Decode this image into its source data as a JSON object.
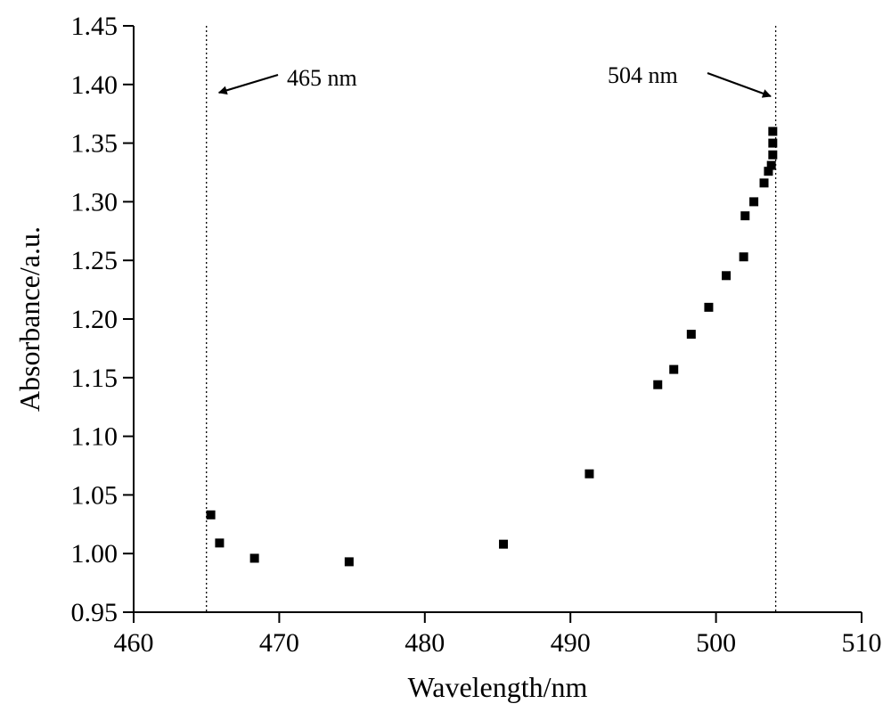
{
  "chart_data": {
    "type": "scatter",
    "xlabel": "Wavelength/nm",
    "ylabel": "Absorbance/a.u.",
    "xlim": [
      460,
      510
    ],
    "ylim": [
      0.95,
      1.45
    ],
    "xticks": [
      "460",
      "470",
      "480",
      "490",
      "500",
      "510"
    ],
    "yticks": [
      "0.95",
      "1.00",
      "1.05",
      "1.10",
      "1.15",
      "1.20",
      "1.25",
      "1.30",
      "1.35",
      "1.40",
      "1.45"
    ],
    "grid": false,
    "marker": "square",
    "marker_color": "#000000",
    "points": [
      {
        "x": 465.3,
        "y": 1.033
      },
      {
        "x": 465.9,
        "y": 1.009
      },
      {
        "x": 468.3,
        "y": 0.996
      },
      {
        "x": 474.8,
        "y": 0.993
      },
      {
        "x": 485.4,
        "y": 1.008
      },
      {
        "x": 491.3,
        "y": 1.068
      },
      {
        "x": 496.0,
        "y": 1.144
      },
      {
        "x": 497.1,
        "y": 1.157
      },
      {
        "x": 498.3,
        "y": 1.187
      },
      {
        "x": 499.5,
        "y": 1.21
      },
      {
        "x": 500.7,
        "y": 1.237
      },
      {
        "x": 501.9,
        "y": 1.253
      },
      {
        "x": 502.0,
        "y": 1.288
      },
      {
        "x": 502.6,
        "y": 1.3
      },
      {
        "x": 503.3,
        "y": 1.316
      },
      {
        "x": 503.6,
        "y": 1.326
      },
      {
        "x": 503.8,
        "y": 1.331
      },
      {
        "x": 503.9,
        "y": 1.34
      },
      {
        "x": 503.9,
        "y": 1.35
      },
      {
        "x": 503.9,
        "y": 1.36
      }
    ],
    "reference_lines": [
      {
        "x": 465.0,
        "style": "dotted"
      },
      {
        "x": 504.1,
        "style": "dotted"
      }
    ],
    "annotations": [
      {
        "text": "465 nm",
        "target_x": 465,
        "arrow": "left"
      },
      {
        "text": "504 nm",
        "target_x": 504,
        "arrow": "right"
      }
    ]
  }
}
